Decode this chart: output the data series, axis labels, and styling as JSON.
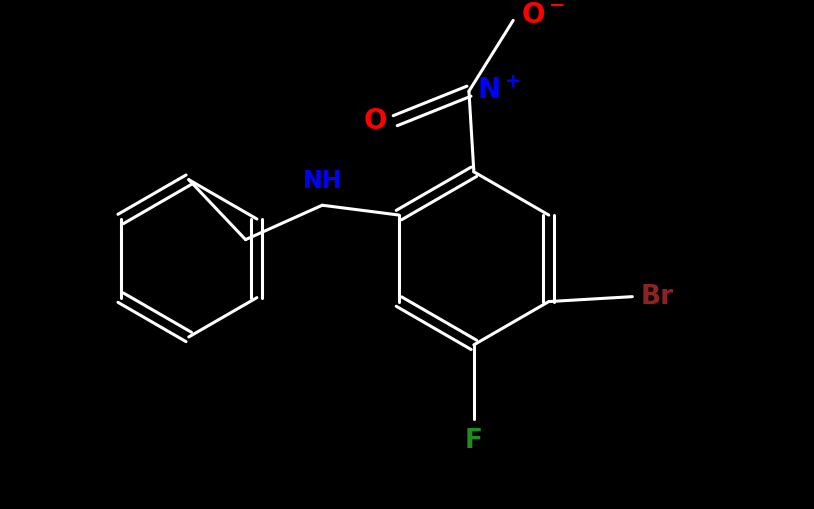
{
  "background_color": "#000000",
  "bond_color": "#ffffff",
  "bond_width": 2.2,
  "figsize": [
    8.14,
    5.09
  ],
  "dpi": 100,
  "label_color_NH": "#0000ff",
  "label_color_O": "#ff0000",
  "label_color_N": "#0000ff",
  "label_color_Br": "#8b2323",
  "label_color_F": "#228b22",
  "label_fontsize": 17,
  "xlim": [
    0.0,
    8.14
  ],
  "ylim": [
    0.0,
    5.09
  ]
}
